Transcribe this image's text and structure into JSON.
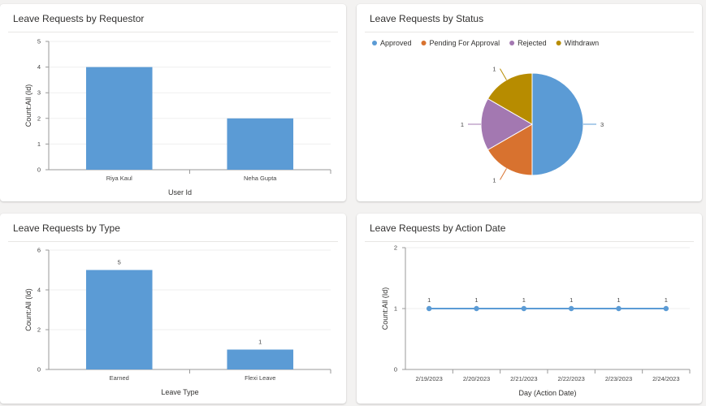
{
  "charts": [
    {
      "id": "requestor",
      "title": "Leave Requests by Requestor",
      "chart_data": {
        "type": "bar",
        "title": "Leave Requests by Requestor",
        "categories": [
          "Riya Kaul",
          "Neha Gupta"
        ],
        "values": [
          4,
          2
        ],
        "xlabel": "User Id",
        "ylabel": "Count:All (Id)",
        "ylim": [
          0,
          5
        ],
        "yticks": [
          0,
          1,
          2,
          3,
          4,
          5
        ],
        "data_labels": false,
        "grid": true,
        "color": "#5b9bd5"
      }
    },
    {
      "id": "status",
      "title": "Leave Requests by Status",
      "chart_data": {
        "type": "pie",
        "title": "Leave Requests by Status",
        "labels": [
          "Approved",
          "Pending For Approval",
          "Rejected",
          "Withdrawn"
        ],
        "values": [
          3,
          1,
          1,
          1
        ],
        "colors": [
          "#5b9bd5",
          "#d8722f",
          "#a378b1",
          "#b78c00"
        ],
        "legend": "top-left",
        "data_labels": true
      }
    },
    {
      "id": "type",
      "title": "Leave Requests by Type",
      "chart_data": {
        "type": "bar",
        "title": "Leave Requests by Type",
        "categories": [
          "Earned",
          "Flexi Leave"
        ],
        "values": [
          5,
          1
        ],
        "xlabel": "Leave Type",
        "ylabel": "Count:All (Id)",
        "ylim": [
          0,
          6
        ],
        "yticks": [
          0,
          2,
          4,
          6
        ],
        "data_labels": true,
        "grid": true,
        "color": "#5b9bd5"
      }
    },
    {
      "id": "action-date",
      "title": "Leave Requests by Action Date",
      "chart_data": {
        "type": "line",
        "title": "Leave Requests by Action Date",
        "categories": [
          "2/19/2023",
          "2/20/2023",
          "2/21/2023",
          "2/22/2023",
          "2/23/2023",
          "2/24/2023"
        ],
        "values": [
          1,
          1,
          1,
          1,
          1,
          1
        ],
        "xlabel": "Day (Action Date)",
        "ylabel": "Count:All (Id)",
        "ylim": [
          0,
          2
        ],
        "yticks": [
          0,
          1,
          2
        ],
        "data_labels": true,
        "grid": true,
        "color": "#5b9bd5"
      }
    }
  ]
}
